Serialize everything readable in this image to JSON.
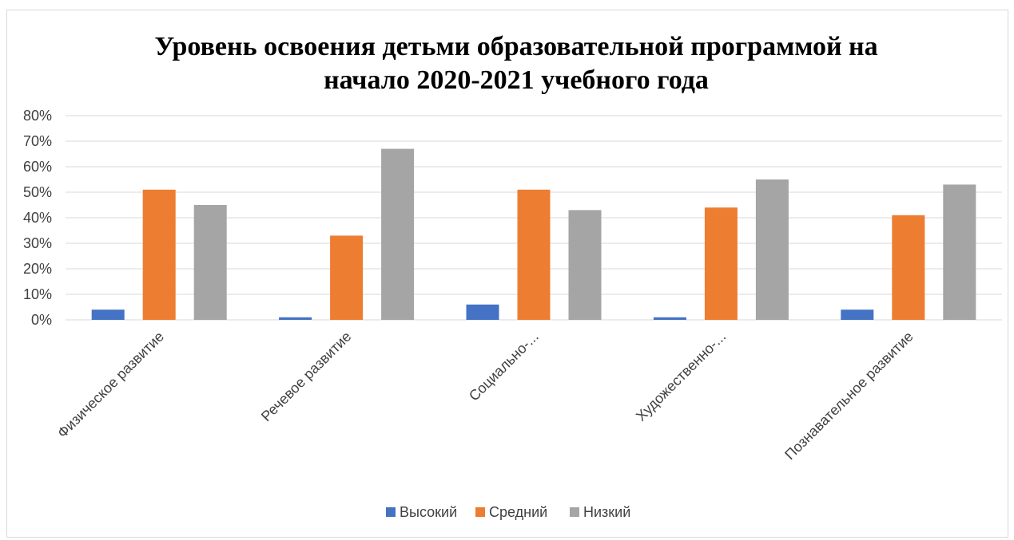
{
  "chart_data": {
    "type": "bar",
    "title_lines": [
      "Уровень освоения детьми образовательной программой на",
      "начало 2020-2021 учебного года"
    ],
    "categories": [
      "Физическое развитие",
      "Речевое развитие",
      "Социально-...",
      "Художественно-...",
      "Познавательное развитие"
    ],
    "series": [
      {
        "name": "Высокий",
        "color": "#4472C4",
        "values": [
          4,
          1,
          6,
          1,
          4
        ]
      },
      {
        "name": "Средний",
        "color": "#ED7D31",
        "values": [
          51,
          33,
          51,
          44,
          41
        ]
      },
      {
        "name": "Низкий",
        "color": "#A5A5A5",
        "values": [
          45,
          67,
          43,
          55,
          53
        ]
      }
    ],
    "ylim": [
      0,
      80
    ],
    "yticks": [
      "0%",
      "10%",
      "20%",
      "30%",
      "40%",
      "50%",
      "60%",
      "70%",
      "80%"
    ],
    "grid": true,
    "legend_position": "bottom"
  }
}
